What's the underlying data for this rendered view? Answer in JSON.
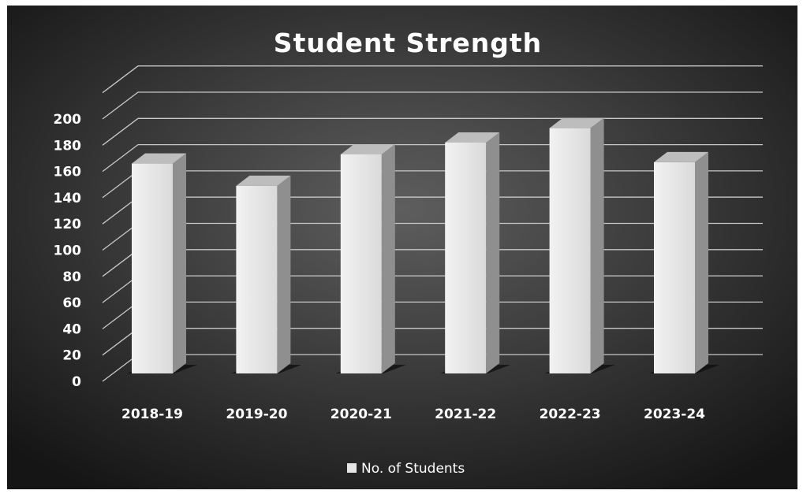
{
  "chart_data": {
    "type": "bar",
    "title": "Student Strength",
    "categories": [
      "2018-19",
      "2019-20",
      "2020-21",
      "2021-22",
      "2022-23",
      "2023-24"
    ],
    "series": [
      {
        "name": "No. of Students",
        "values": [
          160,
          143,
          167,
          176,
          187,
          161
        ]
      }
    ],
    "y_ticks": [
      "0",
      "20",
      "40",
      "60",
      "80",
      "100",
      "120",
      "140",
      "160",
      "180",
      "200"
    ],
    "ylim": [
      0,
      200
    ],
    "grid": true,
    "legend_position": "bottom",
    "style": "3d-column",
    "colors": {
      "background_center": "#5e5e5e",
      "background_edge": "#151515",
      "bar_front": "#e6e6e6",
      "bar_side": "#8f8f8f",
      "bar_top": "#bdbdbd",
      "gridline": "#c8c8c8",
      "text": "#ffffff"
    }
  }
}
